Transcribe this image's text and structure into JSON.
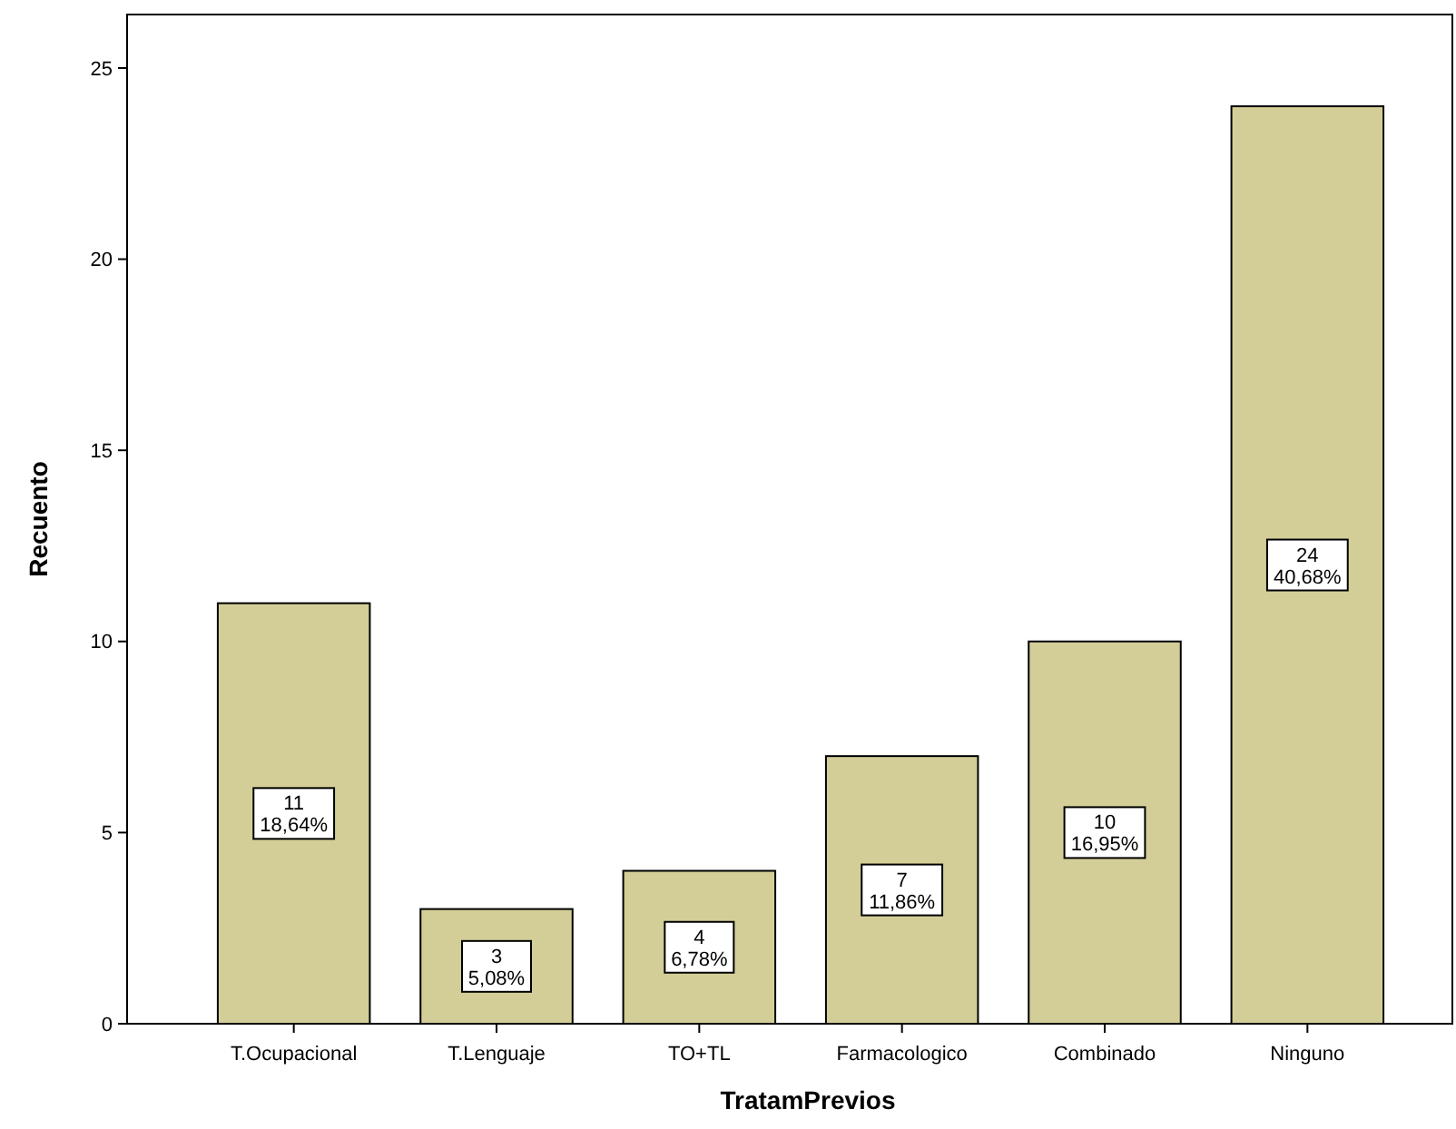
{
  "chart_data": {
    "type": "bar",
    "xlabel": "TratamPrevios",
    "ylabel": "Recuento",
    "categories": [
      "T.Ocupacional",
      "T.Lenguaje",
      "TO+TL",
      "Farmacologico",
      "Combinado",
      "Ninguno"
    ],
    "values": [
      11,
      3,
      4,
      7,
      10,
      24
    ],
    "value_labels": [
      "11\n18,64%",
      "3\n5,08%",
      "4\n6,78%",
      "7\n11,86%",
      "10\n16,95%",
      "24\n40,68%"
    ],
    "color": "#d3ce97",
    "ylim": [
      0,
      26.4
    ],
    "yticks": [
      0,
      5,
      10,
      15,
      20,
      25
    ],
    "grid": false
  }
}
